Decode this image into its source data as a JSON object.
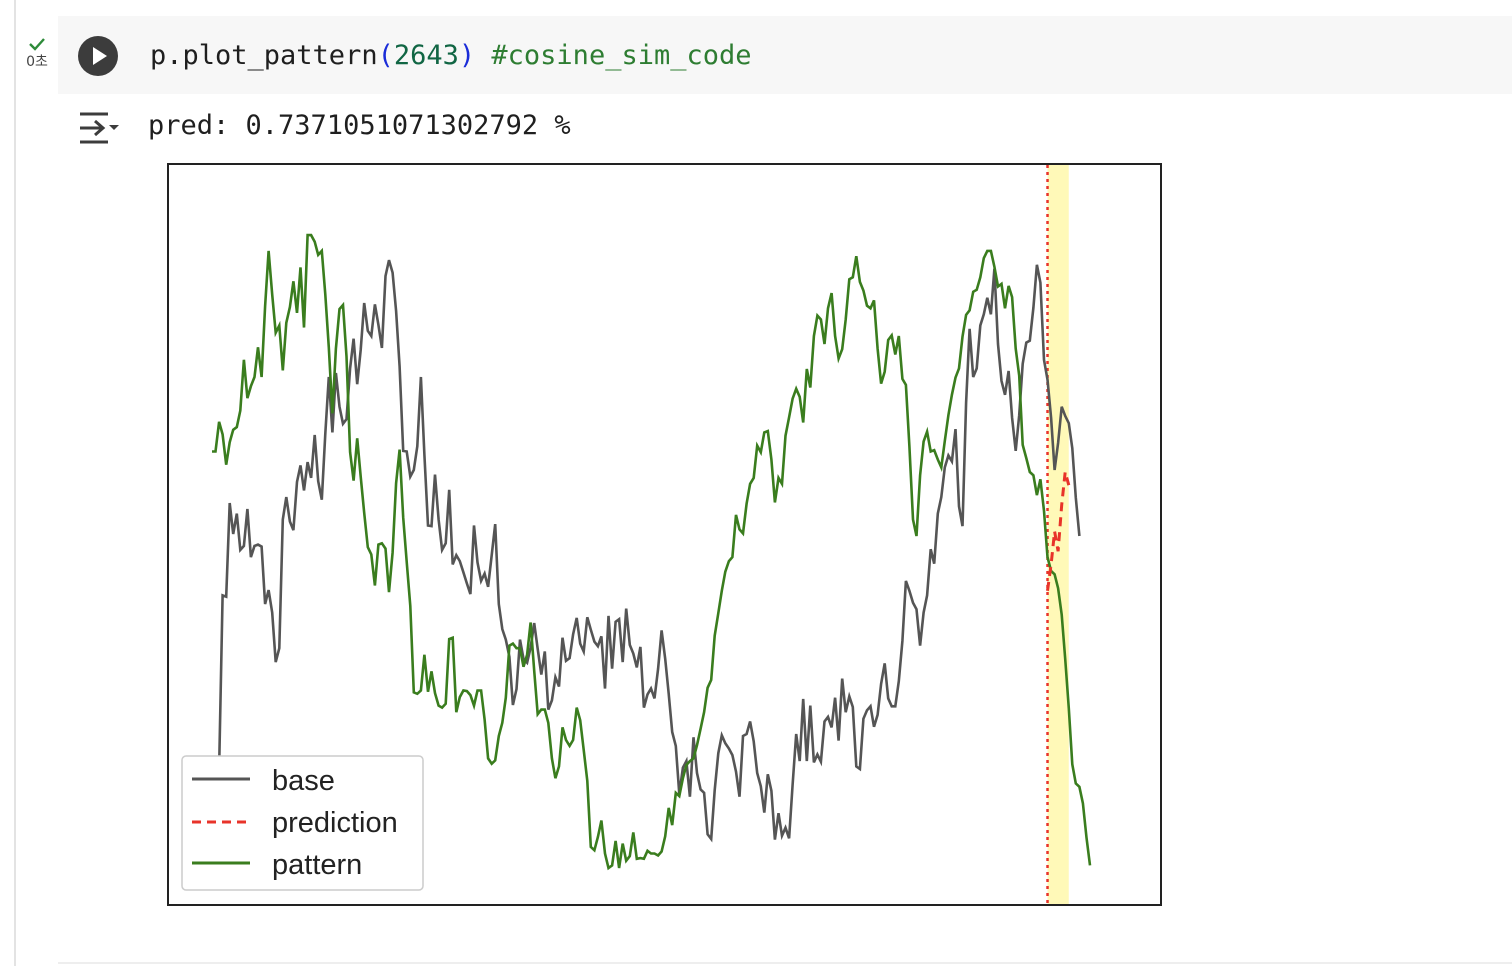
{
  "cell": {
    "status_text": "0초",
    "status_icon": "check-icon",
    "run_icon": "play-icon",
    "code": {
      "func": "p.plot_pattern",
      "open_paren": "(",
      "arg": "2643",
      "close_paren": ")",
      "comment": "#cosine_sim_code"
    }
  },
  "output": {
    "icon": "output-toggle-icon",
    "text": "pred: 0.7371051071302792 %"
  },
  "colors": {
    "base": "#555555",
    "prediction": "#e8332a",
    "pattern": "#3a7d1e",
    "highlight": "#fff9b8",
    "divider": "#e8332a"
  },
  "chart_data": {
    "type": "line",
    "legend_position": "lower-left",
    "grid": false,
    "axes_visible": false,
    "legend": [
      "base",
      "prediction",
      "pattern"
    ],
    "xlim": [
      0,
      248
    ],
    "ylim": [
      0,
      100
    ],
    "divider_x": 236,
    "highlight_range": [
      236,
      242
    ],
    "series": [
      {
        "name": "base",
        "values": [
          8.3,
          8.3,
          14.9,
          41.3,
          41.1,
          55.3,
          50.6,
          53.7,
          48.2,
          48.8,
          54.4,
          47.1,
          48.8,
          49.0,
          48.7,
          40.0,
          42.1,
          38.7,
          31.2,
          33.3,
          52.8,
          56.2,
          52.5,
          51.2,
          58.5,
          61.0,
          57.2,
          61.5,
          59.1,
          65.6,
          58.6,
          55.8,
          65.8,
          74.4,
          66.0,
          75.0,
          69.9,
          67.3,
          68.0,
          75.7,
          80.2,
          73.3,
          78.5,
          85.6,
          81.4,
          80.6,
          85.4,
          82.3,
          78.8,
          89.7,
          92.1,
          90.2,
          84.4,
          76.0,
          63.2,
          63.1,
          59.3,
          60.3,
          63.9,
          74.4,
          62.6,
          51.9,
          51.8,
          59.6,
          52.8,
          48.2,
          49.2,
          57.3,
          46.0,
          47.4,
          46.5,
          44.8,
          43.1,
          41.5,
          51.9,
          46.3,
          43.5,
          44.6,
          42.6,
          47.4,
          52.1,
          40.0,
          36.2,
          34.6,
          32.0,
          24.7,
          27.1,
          34.6,
          31.7,
          31.1,
          33.4,
          37.1,
          33.2,
          29.3,
          32.8,
          24.0,
          25.4,
          28.9,
          27.5,
          34.9,
          31.4,
          31.8,
          35.4,
          37.9,
          34.0,
          32.8,
          38.0,
          36.1,
          34.3,
          33.6,
          35.1,
          27.2,
          38.2,
          30.2,
          37.3,
          37.7,
          31.2,
          39.3,
          33.8,
          32.5,
          30.4,
          33.5,
          24.3,
          26.3,
          27.2,
          25.7,
          30.2,
          36.0,
          31.7,
          26.4,
          20.6,
          18.5,
          11.2,
          15.2,
          16.2,
          10.8,
          19.8,
          14.4,
          11.9,
          11.4,
          5.1,
          4.4,
          11.8,
          17.4,
          20.1,
          18.9,
          18.1,
          17.1,
          14.6,
          10.8,
          20.0,
          20.3,
          22.2,
          19.2,
          14.4,
          12.4,
          8.4,
          14.2,
          11.7,
          4.3,
          8.3,
          4.9,
          6.1,
          4.5,
          12.6,
          20.3,
          16.2,
          25.6,
          16.2,
          24.6,
          16.0,
          17.2,
          16.1,
          22.2,
          22.9,
          21.3,
          25.8,
          19.3,
          28.7,
          23.6,
          26.0,
          24.4,
          15.4,
          15.0,
          22.6,
          23.9,
          24.5,
          21.4,
          23.2,
          27.9,
          31.0,
          25.7,
          24.5,
          24.5,
          28.3,
          34.4,
          43.5,
          42.0,
          40.2,
          39.2,
          33.7,
          38.7,
          41.3,
          48.3,
          46.1,
          53.7,
          56.2,
          60.7,
          62.5,
          61.6,
          66.5,
          54.8,
          51.8,
          70.5,
          81.7,
          74.4,
          75.7,
          82.2,
          83.9,
          86.4,
          83.9,
          90.8,
          79.4,
          73.8,
          71.7,
          75.3,
          68.2,
          63.2,
          68.6,
          76.4,
          79.6,
          79.9,
          84.9,
          91.4,
          88.7,
          77.0,
          74.0,
          68.2,
          60.3,
          64.4,
          69.9,
          68.5,
          67.4,
          63.6,
          56.1,
          50.3
        ]
      },
      {
        "name": "pattern",
        "values": [
          63.1,
          63.1,
          67.6,
          65.7,
          61.1,
          64.5,
          66.4,
          66.8,
          69.3,
          77.0,
          71.2,
          73.0,
          74.4,
          78.9,
          74.4,
          85.1,
          93.5,
          86.9,
          81.1,
          82.2,
          75.4,
          82.6,
          85.0,
          88.9,
          84.1,
          91.0,
          81.9,
          95.9,
          95.9,
          94.9,
          92.9,
          93.5,
          86.9,
          78.9,
          68.9,
          78.7,
          84.7,
          85.3,
          77.5,
          63.0,
          58.7,
          65.1,
          59.3,
          53.8,
          48.6,
          47.5,
          42.8,
          49.0,
          49.2,
          48.4,
          41.8,
          47.8,
          58.3,
          63.4,
          53.1,
          46.4,
          39.7,
          26.6,
          26.4,
          26.9,
          32.3,
          26.7,
          29.8,
          26.5,
          24.6,
          24.3,
          24.9,
          34.7,
          34.9,
          23.6,
          25.9,
          26.9,
          26.8,
          26.2,
          24.6,
          26.9,
          26.9,
          22.5,
          16.6,
          15.8,
          16.3,
          20.0,
          22.0,
          25.8,
          33.7,
          34.0,
          33.3,
          33.3,
          30.5,
          32.3,
          37.2,
          29.9,
          23.3,
          24.0,
          24.0,
          22.0,
          16.6,
          13.6,
          15.4,
          21.3,
          19.4,
          18.5,
          19.4,
          24.3,
          22.4,
          17.9,
          13.2,
          3.2,
          2.7,
          4.7,
          7.2,
          2.2,
          0.0,
          0.4,
          4.1,
          0.0,
          3.7,
          1.1,
          1.8,
          5.4,
          1.4,
          1.5,
          1.4,
          2.6,
          2.2,
          2.2,
          1.9,
          2.5,
          4.8,
          9.1,
          6.5,
          11.4,
          10.9,
          13.6,
          15.6,
          16.2,
          16.6,
          18.6,
          21.1,
          23.6,
          27.3,
          28.5,
          35.2,
          38.6,
          42.0,
          44.9,
          46.5,
          47.1,
          53.5,
          51.3,
          50.7,
          55.2,
          58.2,
          59.1,
          64.0,
          63.0,
          66.0,
          66.2,
          61.9,
          55.4,
          59.1,
          58.2,
          65.5,
          68.3,
          71.1,
          72.6,
          71.4,
          67.5,
          75.6,
          72.8,
          80.6,
          83.7,
          83.1,
          79.4,
          84.8,
          87.1,
          80.6,
          77.2,
          78.6,
          83.1,
          89.2,
          89.5,
          92.7,
          88.8,
          87.5,
          85.2,
          84.8,
          86.0,
          78.7,
          73.4,
          75.2,
          80.0,
          80.7,
          77.8,
          80.6,
          74.1,
          73.2,
          63.9,
          52.8,
          50.3,
          59.5,
          64.6,
          66.1,
          63.1,
          63.3,
          61.9,
          60.7,
          64.7,
          68.6,
          71.7,
          74.3,
          75.7,
          80.5,
          83.8,
          84.5,
          87.3,
          87.6,
          89.5,
          92.4,
          93.5,
          93.5,
          91.1,
          88.1,
          88.5,
          84.8,
          88.2,
          86.5,
          78.7,
          74.6,
          64.1,
          62.1,
          60.0,
          59.5,
          56.5,
          58.9,
          54.1,
          47.1,
          45.0,
          44.5,
          42.4,
          38.4,
          31.7,
          24.2,
          15.7,
          12.8,
          12.3,
          9.8,
          4.6,
          0.4
        ]
      },
      {
        "name": "prediction",
        "x": [
          236,
          237,
          238,
          239,
          240,
          241,
          242
        ],
        "values": [
          42.0,
          46.0,
          51.0,
          48.0,
          55.0,
          60.0,
          58.0
        ]
      }
    ]
  }
}
